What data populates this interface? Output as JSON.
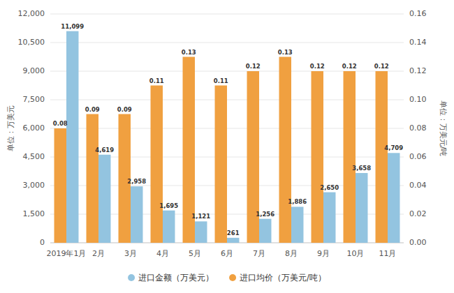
{
  "chart_data": {
    "type": "bar",
    "categories": [
      "2019年1月",
      "2月",
      "3月",
      "4月",
      "5月",
      "6月",
      "7月",
      "8月",
      "9月",
      "10月",
      "11月"
    ],
    "series": [
      {
        "name": "进口均价（万美元/吨）",
        "color": "#f0a040",
        "axis": "y2",
        "values": [
          0.08,
          0.09,
          0.09,
          0.11,
          0.13,
          0.11,
          0.12,
          0.13,
          0.12,
          0.12,
          0.12
        ]
      },
      {
        "name": "进口金额（万美元）",
        "color": "#93c4e0",
        "values": [
          11099,
          4619,
          2958,
          1695,
          1121,
          261,
          1256,
          1886,
          2650,
          3658,
          4709
        ],
        "value_labels": [
          "11,099",
          "4,619",
          "2,958",
          "1,695",
          "1,121",
          "261",
          "1,256",
          "1,886",
          "2,650",
          "3,658",
          "4,709"
        ]
      }
    ],
    "ylabel": "单位：万美元",
    "y2label": "单位：万美元/吨",
    "ylim": [
      0,
      12000
    ],
    "yticks": [
      0,
      {
        "value": 1500,
        "label": "1,500"
      },
      {
        "value": 3000,
        "label": "3,000"
      },
      {
        "value": 4500,
        "label": "4,500"
      },
      {
        "value": 6000,
        "label": "6,000"
      },
      {
        "value": 7500,
        "label": "7,500"
      },
      {
        "value": 9000,
        "label": "9,000"
      },
      {
        "value": 10500,
        "label": "10,500"
      },
      {
        "value": 12000,
        "label": "12,000"
      }
    ],
    "y2lim": [
      0,
      0.16
    ],
    "y2ticks": [
      {
        "value": 0,
        "label": "0.00"
      },
      0.02,
      0.04,
      0.06,
      0.08,
      {
        "value": 0.1,
        "label": "0.10"
      },
      0.12,
      0.14,
      0.16
    ],
    "grid": true,
    "data_labels": true,
    "legend": "bottom"
  }
}
